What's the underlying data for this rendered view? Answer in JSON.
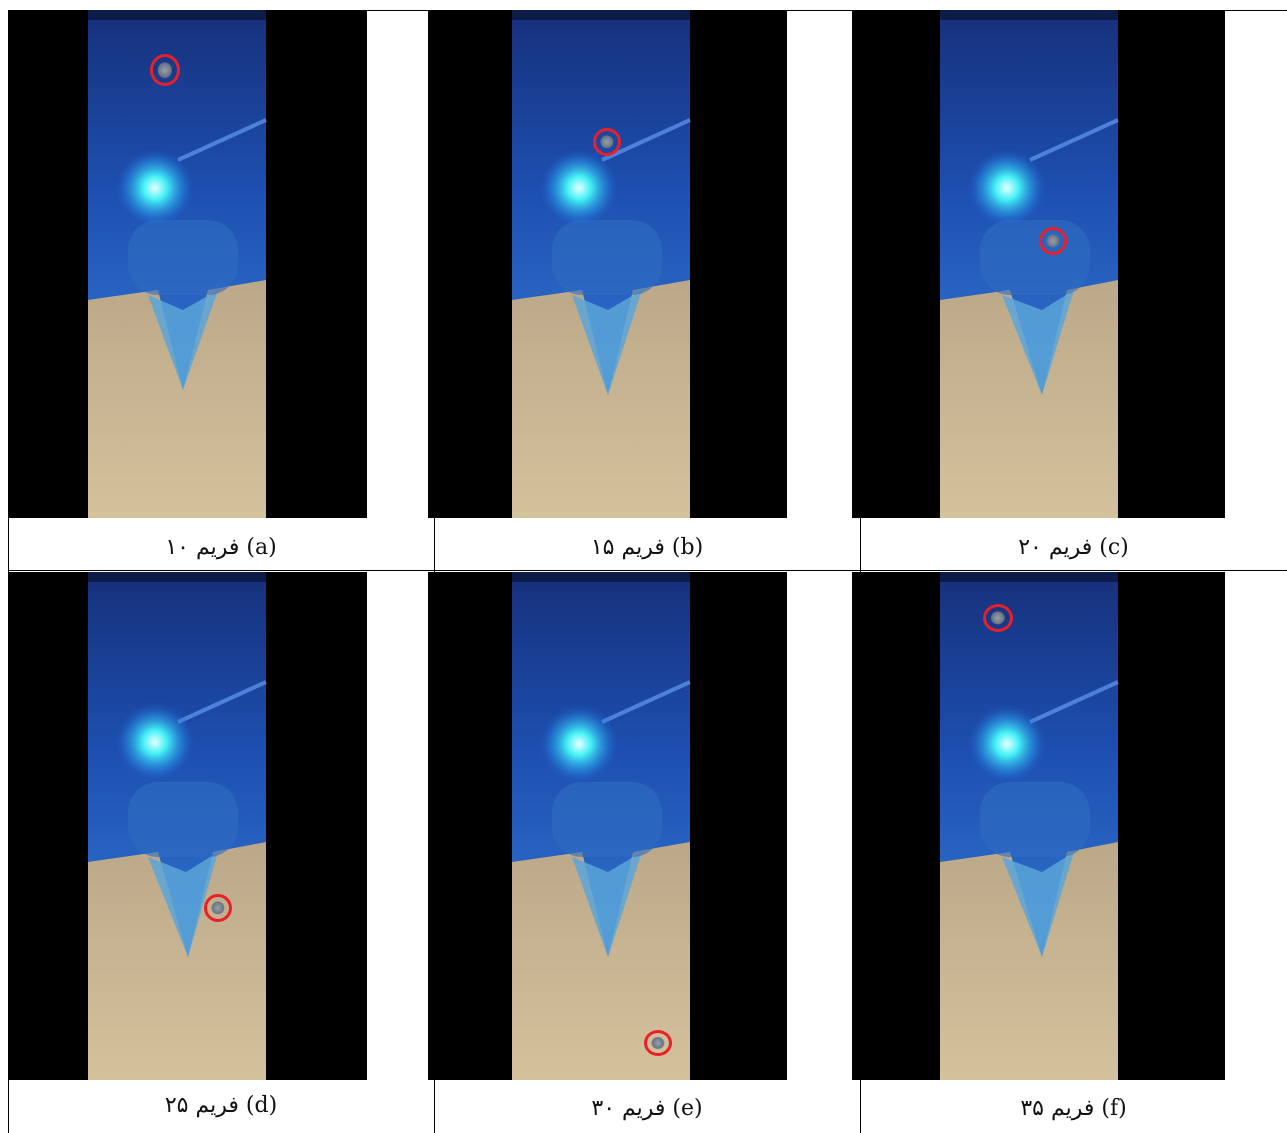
{
  "figure": {
    "panels": [
      {
        "id": "a",
        "caption": "فریم ۱۰ (a)",
        "frame": 10
      },
      {
        "id": "b",
        "caption": "فریم ۱۵ (b)",
        "frame": 15
      },
      {
        "id": "c",
        "caption": "فریم ۲۰ (c)",
        "frame": 20
      },
      {
        "id": "d",
        "caption": "فریم ۲۵ (d)",
        "frame": 25
      },
      {
        "id": "e",
        "caption": "فریم ۳۰ (e)",
        "frame": 30
      },
      {
        "id": "f",
        "caption": "فریم ۳۵ (f)",
        "frame": 35
      }
    ],
    "colors": {
      "background": "#000000",
      "water_blue": "#1d4fb0",
      "light_glow": "#42f0f5",
      "sand": "#c9b48e",
      "marker": "#e8202a"
    },
    "icons": [
      "highlight-ring"
    ]
  }
}
